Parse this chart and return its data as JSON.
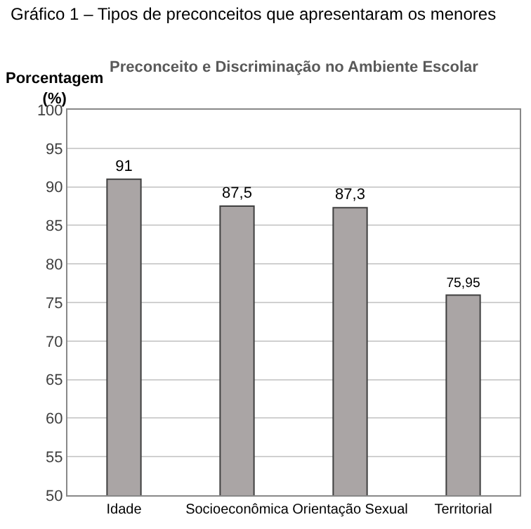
{
  "chart_data": {
    "type": "bar",
    "title": "Gráfico 1 – Tipos de preconceitos que apresentaram os menores",
    "subtitle": "Preconceito e Discriminação no Ambiente Escolar",
    "ylabel": "Porcentagem (%)",
    "categories": [
      "Idade",
      "Socioeconômica",
      "Orientação Sexual",
      "Territorial"
    ],
    "values": [
      91,
      87.5,
      87.3,
      75.95
    ],
    "color": "#aaa5a5",
    "value_labels": [
      "91",
      "87,5",
      "87,3",
      "75,95"
    ],
    "ylim": [
      50,
      100
    ],
    "yticks": [
      50,
      55,
      60,
      65,
      70,
      75,
      80,
      85,
      90,
      95,
      100
    ],
    "grid": "y"
  }
}
